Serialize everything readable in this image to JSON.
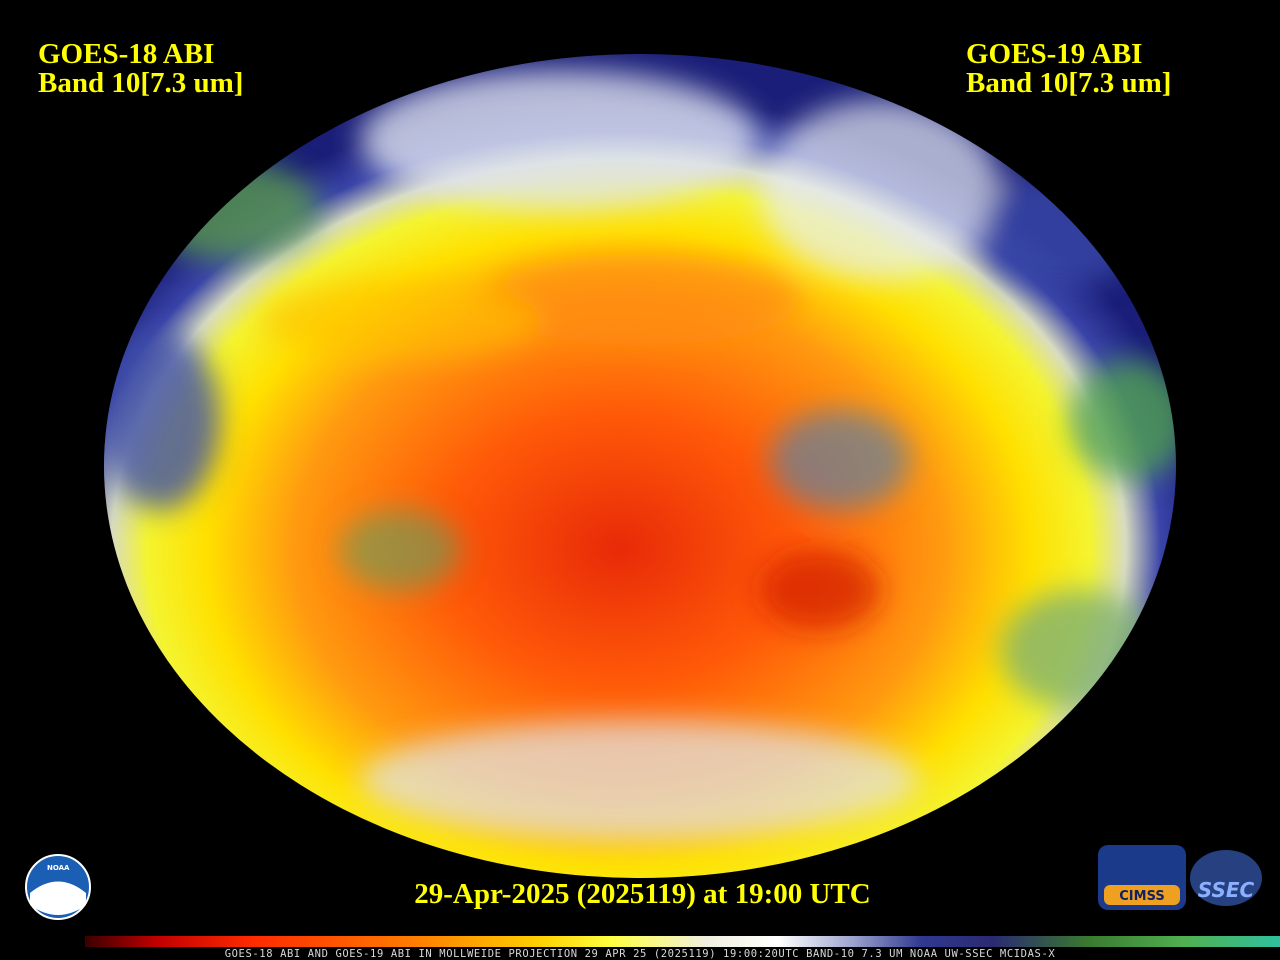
{
  "header": {
    "left": {
      "line1": "GOES-18 ABI",
      "line2": "Band 10[7.3 um]"
    },
    "right": {
      "line1": "GOES-19 ABI",
      "line2": "Band 10[7.3 um]"
    }
  },
  "timestamp": "29-Apr-2025 (2025119) at 19:00 UTC",
  "colorbar": {
    "label": "GOES-18 ABI AND GOES-19 ABI IN MOLLWEIDE PROJECTION 29 APR 25 (2025119) 19:00:20UTC BAND-10 7.3 UM NOAA UW-SSEC MCIDAS-X"
  },
  "logos": {
    "noaa": "NOAA",
    "cimss": "CIMSS",
    "ssec": "SSEC"
  }
}
